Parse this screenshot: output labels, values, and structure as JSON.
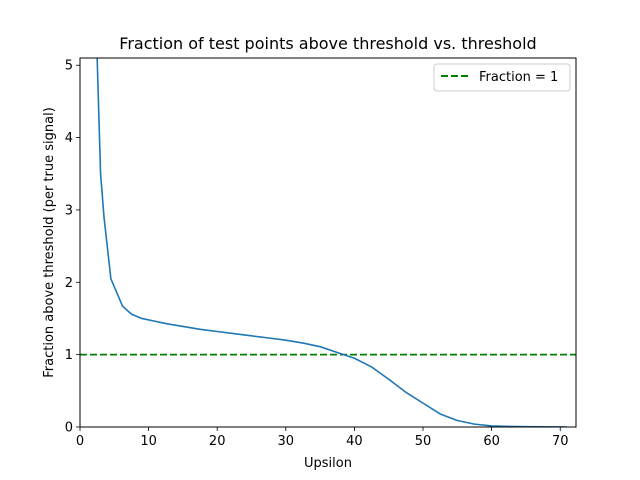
{
  "chart_data": {
    "type": "line",
    "title": "Fraction of test points above threshold vs. threshold",
    "xlabel": "Upsilon",
    "ylabel": "Fraction above threshold (per true signal)",
    "xlim": [
      0,
      72.3
    ],
    "ylim": [
      0,
      5.1
    ],
    "xticks": [
      0,
      10,
      20,
      30,
      40,
      50,
      60,
      70
    ],
    "yticks": [
      0,
      1,
      2,
      3,
      4,
      5
    ],
    "grid": false,
    "legend_position": "top-right",
    "series": [
      {
        "color": "#1f77b4",
        "style": "solid",
        "x": [
          2.5,
          3.0,
          3.5,
          4.5,
          6.2,
          7.5,
          9.0,
          10.5,
          12.5,
          15.0,
          17.5,
          20.0,
          22.5,
          25.0,
          27.5,
          30.0,
          32.5,
          35.0,
          37.5,
          40.0,
          42.5,
          45.0,
          47.5,
          50.0,
          52.5,
          55.0,
          57.5,
          60.0,
          62.5,
          65.0,
          67.5,
          70.0,
          71.0
        ],
        "y": [
          5.1,
          3.5,
          2.9,
          2.05,
          1.67,
          1.56,
          1.5,
          1.47,
          1.43,
          1.39,
          1.35,
          1.32,
          1.29,
          1.26,
          1.23,
          1.2,
          1.16,
          1.11,
          1.03,
          0.95,
          0.83,
          0.66,
          0.48,
          0.33,
          0.18,
          0.09,
          0.04,
          0.015,
          0.008,
          0.004,
          0.002,
          0.001,
          0.0
        ]
      },
      {
        "name": "Fraction = 1",
        "color": "#008000",
        "style": "dashed",
        "x": [
          0,
          72.3
        ],
        "y": [
          1,
          1
        ]
      }
    ]
  }
}
